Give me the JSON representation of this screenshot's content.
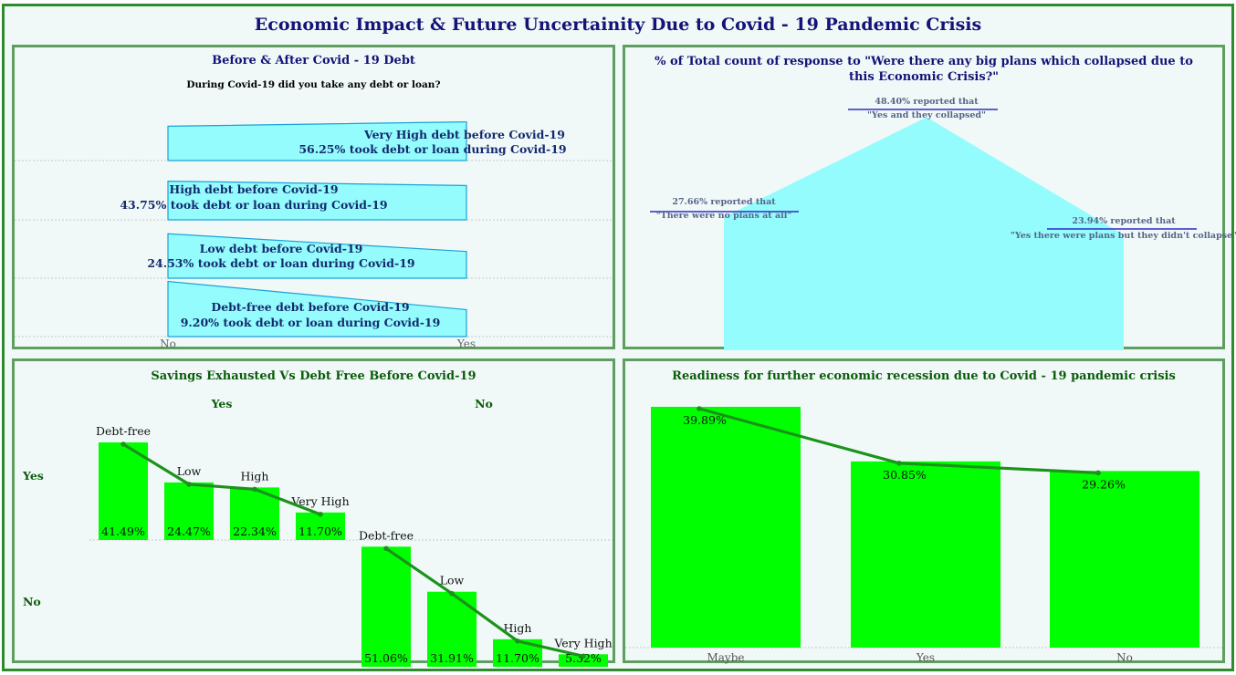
{
  "title": "Economic Impact & Future Uncertainity Due to Covid - 19 Pandemic Crisis",
  "chart_data": [
    {
      "type": "funnel",
      "title": "Before & After Covid - 19 Debt",
      "subtitle": "During Covid-19 did you take any debt or loan?",
      "x_categories": [
        "No",
        "Yes"
      ],
      "rows": [
        {
          "line1": "Very High debt before Covid-19",
          "line2": "56.25% took debt or loan during Covid-19",
          "yes_pct": 56.25
        },
        {
          "line1": "High debt before Covid-19",
          "line2": "43.75% took debt or loan during Covid-19",
          "yes_pct": 43.75
        },
        {
          "line1": "Low debt before Covid-19",
          "line2": "24.53% took debt or loan during Covid-19",
          "yes_pct": 24.53
        },
        {
          "line1": "Debt-free debt before Covid-19",
          "line2": "9.20% took debt or loan during Covid-19",
          "yes_pct": 9.2
        }
      ]
    },
    {
      "type": "area",
      "title": "% of Total count of response to \"Were there any big plans which collapsed due to this Economic Crisis?\"",
      "points": [
        {
          "value": 27.66,
          "label1": "27.66% reported that",
          "label2": "\"There were no plans at all\""
        },
        {
          "value": 48.4,
          "label1": "48.40% reported that",
          "label2": "\"Yes and they collapsed\""
        },
        {
          "value": 23.94,
          "label1": "23.94% reported that",
          "label2": "\"Yes there were plans but they didn't collapse\""
        }
      ],
      "ylim": [
        0,
        50
      ]
    },
    {
      "type": "bar",
      "title": "Savings Exhausted Vs Debt Free Before Covid-19",
      "col_headers": [
        "Yes",
        "No"
      ],
      "row_headers": [
        "Yes",
        "No"
      ],
      "categories": [
        "Debt-free",
        "Low",
        "High",
        "Very High"
      ],
      "series": [
        {
          "values": [
            41.49,
            24.47,
            22.34,
            11.7
          ],
          "labels": [
            "41.49%",
            "24.47%",
            "22.34%",
            "11.70%"
          ]
        },
        {
          "values": [
            51.06,
            31.91,
            11.7,
            5.32
          ],
          "labels": [
            "51.06%",
            "31.91%",
            "11.70%",
            "5.32%"
          ]
        }
      ],
      "ylim": [
        0,
        55
      ]
    },
    {
      "type": "bar",
      "title": "Readiness for further economic recession due to Covid - 19 pandemic crisis",
      "categories": [
        "Maybe",
        "Yes",
        "No"
      ],
      "values": [
        39.89,
        30.85,
        29.26
      ],
      "labels": [
        "39.89%",
        "30.85%",
        "29.26%"
      ],
      "ylim": [
        0,
        41
      ]
    }
  ],
  "colors": {
    "funnel_fill": "#94fcfd",
    "funnel_stroke": "#1aa1d8",
    "area_fill": "#94fcfd",
    "bar_fill": "#00ff00",
    "trend_line": "#1b931b",
    "title_navy": "#131378",
    "title_green": "#0b5c0b",
    "frame_green": "#2e8b2e"
  }
}
